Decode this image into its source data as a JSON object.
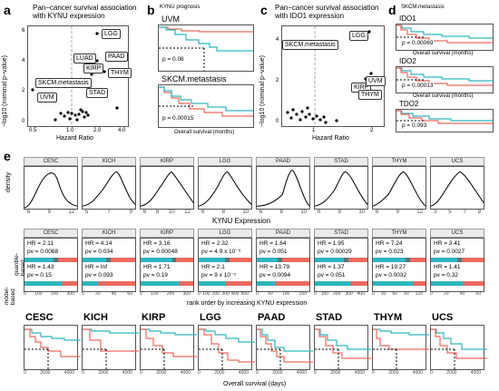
{
  "panels": {
    "a": {
      "label": "a",
      "title": "Pan−cancer survival association\nwith KYNU expression",
      "xlabel": "Hazard Ratio",
      "ylabel": "−log10 (nominal p−value)",
      "xticks": [
        "0.5",
        "1.0",
        "2.0",
        "4.0"
      ],
      "yticks": [
        "0",
        "2",
        "4",
        "6"
      ],
      "tags": [
        "LGG",
        "PAAD",
        "LUAD",
        "KIRP",
        "THYM",
        "SKCM.metastasis",
        "STAD",
        "UVM"
      ]
    },
    "b": {
      "label": "b",
      "title": "KYNU prognosis",
      "km1_title": "UVM",
      "km1_p": "p = 0.06",
      "km2_title": "SKCM.metastasis",
      "km2_p": "p = 0.00015",
      "xlabel": "Overall survival (months)"
    },
    "c": {
      "label": "c",
      "title": "Pan−cancer survival association\nwith IDO1 expression",
      "xlabel": "Hazard Ratio",
      "ylabel": "−log10 (nominal p−value)",
      "xticks": [
        "1",
        "2"
      ],
      "yticks": [
        "0",
        "2",
        "4"
      ],
      "tags": [
        "SKCM.metastasis",
        "LGG",
        "KIRP",
        "UVM",
        "THYM"
      ]
    },
    "d": {
      "label": "d",
      "title": "SKCM.metastasis",
      "km1_title": "IDO1",
      "km1_p": "p = 0.00069",
      "km2_title": "IDO2",
      "km2_p": "p = 0.00013",
      "km3_title": "TDO2",
      "km3_p": "p = 0.093",
      "xlabel": "Overall survival (months)"
    },
    "e": {
      "label": "e",
      "density_ylabel": "density",
      "density_xlabel": "KYNU Expression",
      "rank_xlabel": "rank order by increasing KYNU expression",
      "os_xlabel": "Overall survival (days)",
      "row_label_top": "quantile-\nbased",
      "row_label_bottom": "model-\nbased",
      "cancers": [
        {
          "name": "CESC",
          "hr1": "HR = 2.11",
          "pv1": "pv = 0.0068",
          "hr2": "HR = 1.43",
          "pv2": "pv = 0.15",
          "xt": [
            "6",
            "9",
            "12"
          ],
          "rt": [
            "0",
            "100",
            "200",
            "300"
          ]
        },
        {
          "name": "KICH",
          "hr1": "HR = 4.14",
          "pv1": "pv = 0.034",
          "hr2": "HR = Inf",
          "pv2": "pv = 0.093",
          "xt": [
            "5",
            "7",
            "9"
          ],
          "rt": [
            "0",
            "20",
            "40",
            "60"
          ]
        },
        {
          "name": "KIRP",
          "hr1": "HR = 3.16",
          "pv1": "pv = 0.00048",
          "hr2": "HR = 1.71",
          "pv2": "pv = 0.19",
          "xt": [
            "6",
            "8",
            "10",
            "12"
          ],
          "rt": [
            "0",
            "100",
            "200",
            "300"
          ]
        },
        {
          "name": "LGG",
          "hr1": "HR = 2.32",
          "pv1": "pv = 4.9 x 10⁻⁶",
          "hr2": "HR = 2.1",
          "pv2": "pv = 9 x 10⁻⁵",
          "xt": [
            "6",
            "8",
            "10"
          ],
          "rt": [
            "0",
            "100",
            "200",
            "300",
            "400",
            "500"
          ]
        },
        {
          "name": "PAAD",
          "hr1": "HR = 1.64",
          "pv1": "pv = 0.051",
          "hr2": "HR = 13.79",
          "pv2": "pv = 0.0094",
          "xt": [
            "6",
            "8",
            "10"
          ],
          "rt": [
            "0",
            "50",
            "100",
            "150"
          ]
        },
        {
          "name": "STAD",
          "hr1": "HR = 1.95",
          "pv1": "pv = 0.00029",
          "hr2": "HR = 1.37",
          "pv2": "pv = 0.051",
          "xt": [
            "6",
            "8",
            "10"
          ],
          "rt": [
            "0",
            "100",
            "200",
            "300",
            "400"
          ]
        },
        {
          "name": "THYM",
          "hr1": "HR = 7.24",
          "pv1": "pv = 0.023",
          "hr2": "HR = 19.27",
          "pv2": "pv = 0.0032",
          "xt": [
            "6",
            "9",
            "12"
          ],
          "rt": [
            "0",
            "30",
            "60",
            "90",
            "120"
          ]
        },
        {
          "name": "UCS",
          "hr1": "HR = 3.41",
          "pv1": "pv = 0.0027",
          "hr2": "HR = 1.41",
          "pv2": "pv = 0.32",
          "xt": [
            "3",
            "5",
            "7",
            "9"
          ],
          "rt": [
            "0",
            "20",
            "40",
            "60"
          ]
        }
      ]
    }
  },
  "colors": {
    "red": "#ee6a5f",
    "teal": "#2db6bd",
    "grey": "#6d6d6d",
    "steel": "#3f7f8f"
  }
}
